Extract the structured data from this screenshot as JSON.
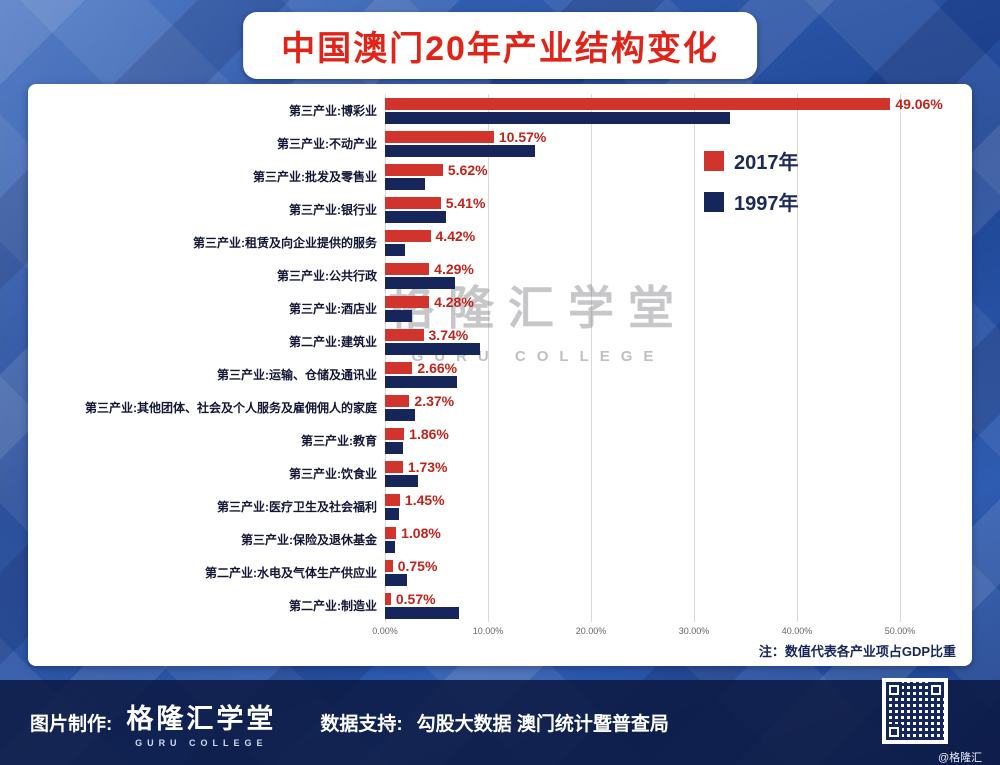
{
  "title": "中国澳门20年产业结构变化",
  "chart_data": {
    "type": "bar",
    "orientation": "horizontal",
    "title": "中国澳门20年产业结构变化",
    "categories": [
      "第三产业:博彩业",
      "第三产业:不动产业",
      "第三产业:批发及零售业",
      "第三产业:银行业",
      "第三产业:租赁及向企业提供的服务",
      "第三产业:公共行政",
      "第三产业:酒店业",
      "第二产业:建筑业",
      "第三产业:运输、仓储及通讯业",
      "第三产业:其他团体、社会及个人服务及雇佣佣人的家庭",
      "第三产业:教育",
      "第三产业:饮食业",
      "第三产业:医疗卫生及社会福利",
      "第三产业:保险及退休基金",
      "第二产业:水电及气体生产供应业",
      "第二产业:制造业"
    ],
    "series": [
      {
        "name": "2017年",
        "color": "#d0342c",
        "values": [
          49.06,
          10.57,
          5.62,
          5.41,
          4.42,
          4.29,
          4.28,
          3.74,
          2.66,
          2.37,
          1.86,
          1.73,
          1.45,
          1.08,
          0.75,
          0.57
        ],
        "labels": [
          "49.06%",
          "10.57%",
          "5.62%",
          "5.41%",
          "4.42%",
          "4.29%",
          "4.28%",
          "3.74%",
          "2.66%",
          "2.37%",
          "1.86%",
          "1.73%",
          "1.45%",
          "1.08%",
          "0.75%",
          "0.57%"
        ]
      },
      {
        "name": "1997年",
        "color": "#16265a",
        "values": [
          33.5,
          14.6,
          3.9,
          5.9,
          1.9,
          6.8,
          2.6,
          9.2,
          7.0,
          2.9,
          1.7,
          3.2,
          1.4,
          1.0,
          2.1,
          7.2
        ]
      }
    ],
    "x_ticks": [
      "0.00%",
      "10.00%",
      "20.00%",
      "30.00%",
      "40.00%",
      "50.00%"
    ],
    "xlim": [
      0,
      52
    ],
    "grid": true,
    "legend_position": "top-right",
    "note": "注：数值代表各产业项占GDP比重"
  },
  "watermark": {
    "text": "格隆汇学堂",
    "subtext": "GURU COLLEGE"
  },
  "footer": {
    "made_by_label": "图片制作:",
    "logo_text": "格隆汇学堂",
    "logo_subtext": "GURU COLLEGE",
    "support_label": "数据支持:",
    "support_sources": "勾股大数据  澳门统计暨普查局",
    "handle": "@格隆汇"
  }
}
